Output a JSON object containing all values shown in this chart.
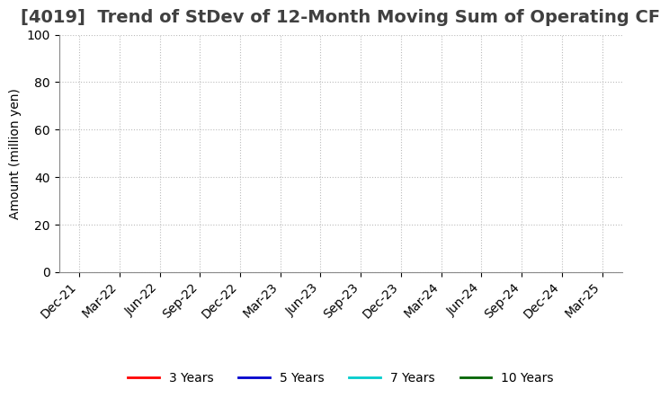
{
  "title": "[4019]  Trend of StDev of 12-Month Moving Sum of Operating CF",
  "ylabel": "Amount (million yen)",
  "ylim": [
    0,
    100
  ],
  "yticks": [
    0,
    20,
    40,
    60,
    80,
    100
  ],
  "x_tick_labels": [
    "Dec-21",
    "Mar-22",
    "Jun-22",
    "Sep-22",
    "Dec-22",
    "Mar-23",
    "Jun-23",
    "Sep-23",
    "Dec-23",
    "Mar-24",
    "Jun-24",
    "Sep-24",
    "Dec-24",
    "Mar-25"
  ],
  "legend_entries": [
    {
      "label": "3 Years",
      "color": "#ff0000"
    },
    {
      "label": "5 Years",
      "color": "#0000cd"
    },
    {
      "label": "7 Years",
      "color": "#00cccc"
    },
    {
      "label": "10 Years",
      "color": "#006400"
    }
  ],
  "background_color": "#ffffff",
  "grid_color": "#bbbbbb",
  "title_color": "#404040",
  "title_fontsize": 14,
  "axis_label_fontsize": 10,
  "tick_fontsize": 10
}
